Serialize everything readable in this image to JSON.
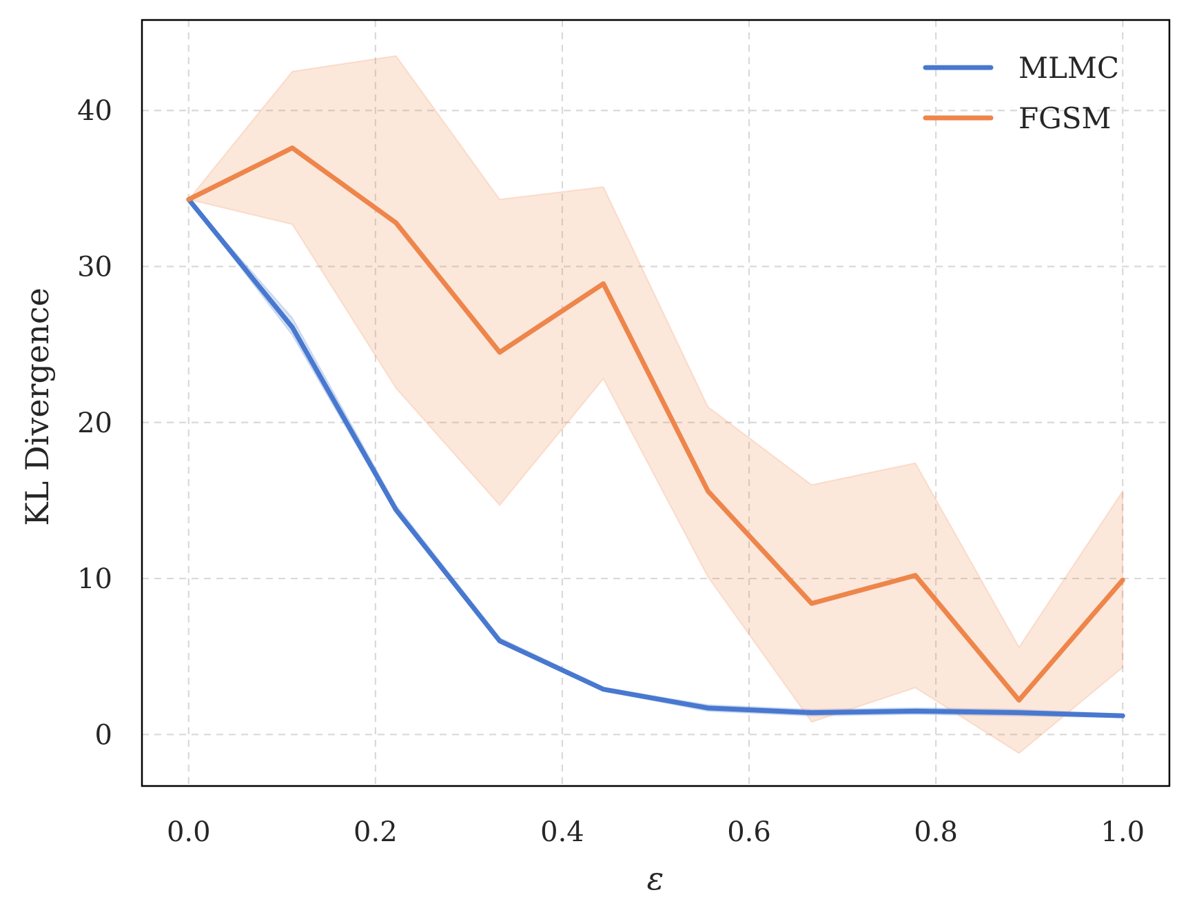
{
  "chart_data": {
    "type": "line",
    "xlabel": "ε",
    "ylabel": "KL Divergence",
    "xlim": [
      -0.05,
      1.05
    ],
    "ylim": [
      -3.3,
      45.8
    ],
    "xticks": [
      0.0,
      0.2,
      0.4,
      0.6,
      0.8,
      1.0
    ],
    "xtick_labels": [
      "0.0",
      "0.2",
      "0.4",
      "0.6",
      "0.8",
      "1.0"
    ],
    "yticks": [
      0,
      10,
      20,
      30,
      40
    ],
    "ytick_labels": [
      "0",
      "10",
      "20",
      "30",
      "40"
    ],
    "grid": true,
    "legend_position": "top-right",
    "x": [
      0.0,
      0.111,
      0.222,
      0.333,
      0.444,
      0.556,
      0.667,
      0.778,
      0.889,
      1.0
    ],
    "series": [
      {
        "name": "MLMC",
        "color": "#4878cf",
        "values": [
          34.3,
          26.1,
          14.4,
          6.0,
          2.9,
          1.7,
          1.4,
          1.5,
          1.4,
          1.2
        ],
        "lower": [
          34.3,
          25.6,
          14.2,
          5.9,
          2.8,
          1.5,
          1.2,
          1.3,
          1.2,
          1.1
        ],
        "upper": [
          34.3,
          26.7,
          14.7,
          6.2,
          3.0,
          1.9,
          1.6,
          1.7,
          1.6,
          1.3
        ]
      },
      {
        "name": "FGSM",
        "color": "#ee854a",
        "values": [
          34.3,
          37.6,
          32.8,
          24.5,
          28.9,
          15.6,
          8.4,
          10.2,
          2.2,
          9.9
        ],
        "lower": [
          34.3,
          32.7,
          22.2,
          14.7,
          22.8,
          10.1,
          0.8,
          3.0,
          -1.2,
          4.3
        ],
        "upper": [
          34.3,
          42.5,
          43.5,
          34.3,
          35.1,
          21.0,
          16.0,
          17.4,
          5.6,
          15.6
        ]
      }
    ]
  }
}
